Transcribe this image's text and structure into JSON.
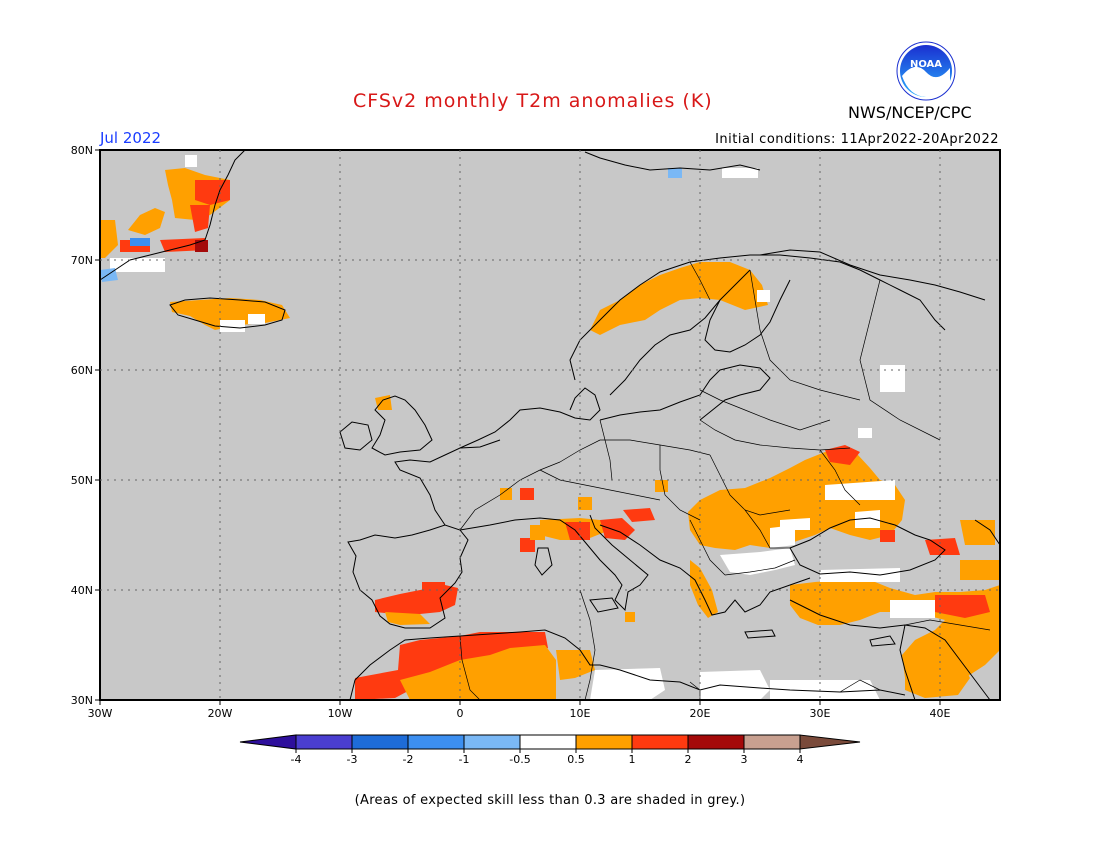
{
  "header": {
    "title": "CFSv2 monthly T2m anomalies (K)",
    "agency": "NWS/NCEP/CPC",
    "month": "Jul 2022",
    "initial_conditions": "Initial conditions: 11Apr2022-20Apr2022"
  },
  "logo": {
    "text": "NOAA",
    "icon": "noaa-logo-icon"
  },
  "map": {
    "projection": "lat-lon",
    "lon_range": [
      -30,
      45
    ],
    "lat_range": [
      30,
      80
    ],
    "grid": true,
    "background_color": "#c8c8c8",
    "lon_ticks": [
      "30W",
      "20W",
      "10W",
      "0",
      "10E",
      "20E",
      "30E",
      "40E"
    ],
    "lat_ticks": [
      "30N",
      "40N",
      "50N",
      "60N",
      "70N",
      "80N"
    ],
    "anomaly_regions": [
      {
        "name": "northern-scandinavia",
        "anomaly": "0.5 to 1"
      },
      {
        "name": "ukraine-black-sea",
        "anomaly": "0.5 to 1"
      },
      {
        "name": "turkey",
        "anomaly": "0.5 to 1"
      },
      {
        "name": "north-africa",
        "anomaly": "1 to 2"
      },
      {
        "name": "southern-iberia",
        "anomaly": "1 to 2"
      },
      {
        "name": "greenland-east-coast",
        "anomaly": "1 to 2"
      },
      {
        "name": "iceland",
        "anomaly": "0.5 to 1"
      },
      {
        "name": "adriatic-italy",
        "anomaly": "1 to 2"
      }
    ]
  },
  "colorbar": {
    "colors": [
      "#2e0f9c",
      "#4a3ed0",
      "#1e6cd8",
      "#3c8ff0",
      "#7ab8f5",
      "#ffffff",
      "#ffa000",
      "#ff3a10",
      "#a40a0a",
      "#c8a090",
      "#7a4a3a"
    ],
    "labels": [
      "-4",
      "-3",
      "-2",
      "-1",
      "-0.5",
      "0.5",
      "1",
      "2",
      "3",
      "4"
    ]
  },
  "footnote": "(Areas of expected skill less than 0.3 are shaded in grey.)"
}
